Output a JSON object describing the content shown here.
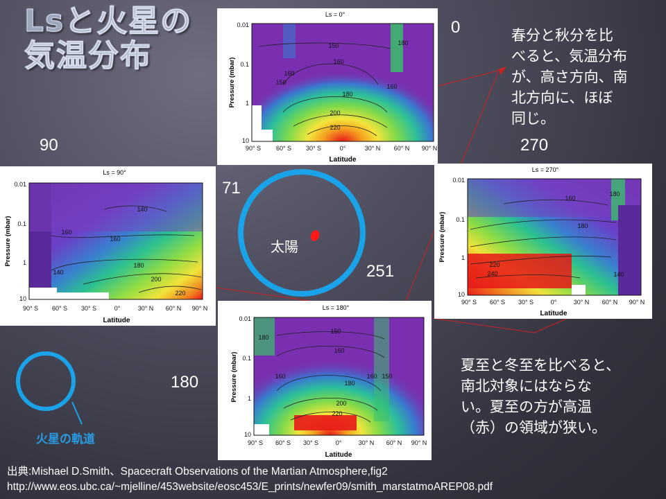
{
  "slide": {
    "title_line1": "Lsと火星の",
    "title_line2": "気温分布",
    "note_top": [
      "春分と秋分を比",
      "べると、気温分布",
      "が、高さ方向、南",
      "北方向に、ほぼ",
      "同じ。"
    ],
    "note_bottom": [
      "夏至と冬至を比べると、",
      "南北対象にはならな",
      "い。夏至の方が高温",
      "（赤）の領域が狭い。"
    ],
    "label_0": "0",
    "label_90": "90",
    "label_270": "270",
    "label_180": "180",
    "label_71": "71",
    "label_251": "251",
    "sun_label": "太陽",
    "orbit_caption": "火星の軌道",
    "citation_line1": "出典:Mishael D.Smith、Spacecraft Observations of the Martian Atmosphere,fig2",
    "citation_line2": "http://www.eos.ubc.ca/~mjelline/453website/eosc453/E_prints/newfer09/smith_marstatmoAREP08.pdf"
  },
  "panels": {
    "common": {
      "ylabel": "Pressure (mbar)",
      "xlabel": "Latitude",
      "yticks": [
        "0.01",
        "0.1",
        "1",
        "10"
      ],
      "xticks": [
        "90° S",
        "60° S",
        "30° S",
        "0°",
        "30° N",
        "60° N",
        "90° N"
      ]
    },
    "ls0": {
      "title": "Ls = 0°",
      "contours": [
        "150",
        "180",
        "160",
        "160",
        "150",
        "180",
        "160",
        "200",
        "220"
      ]
    },
    "ls90": {
      "title": "Ls = 90°",
      "contours": [
        "140",
        "160",
        "160",
        "140",
        "180",
        "200",
        "220"
      ]
    },
    "ls270": {
      "title": "Ls = 270°",
      "contours": [
        "180",
        "160",
        "180",
        "220",
        "240",
        "140"
      ]
    },
    "ls180": {
      "title": "Ls = 180°",
      "contours": [
        "150",
        "180",
        "160",
        "160",
        "160",
        "150",
        "180",
        "200",
        "220"
      ]
    }
  },
  "colors": {
    "orbit": "#1aa3e8",
    "sun": "#ff1a1a",
    "leader_line": "#cc2222",
    "text": "#ffffff"
  }
}
